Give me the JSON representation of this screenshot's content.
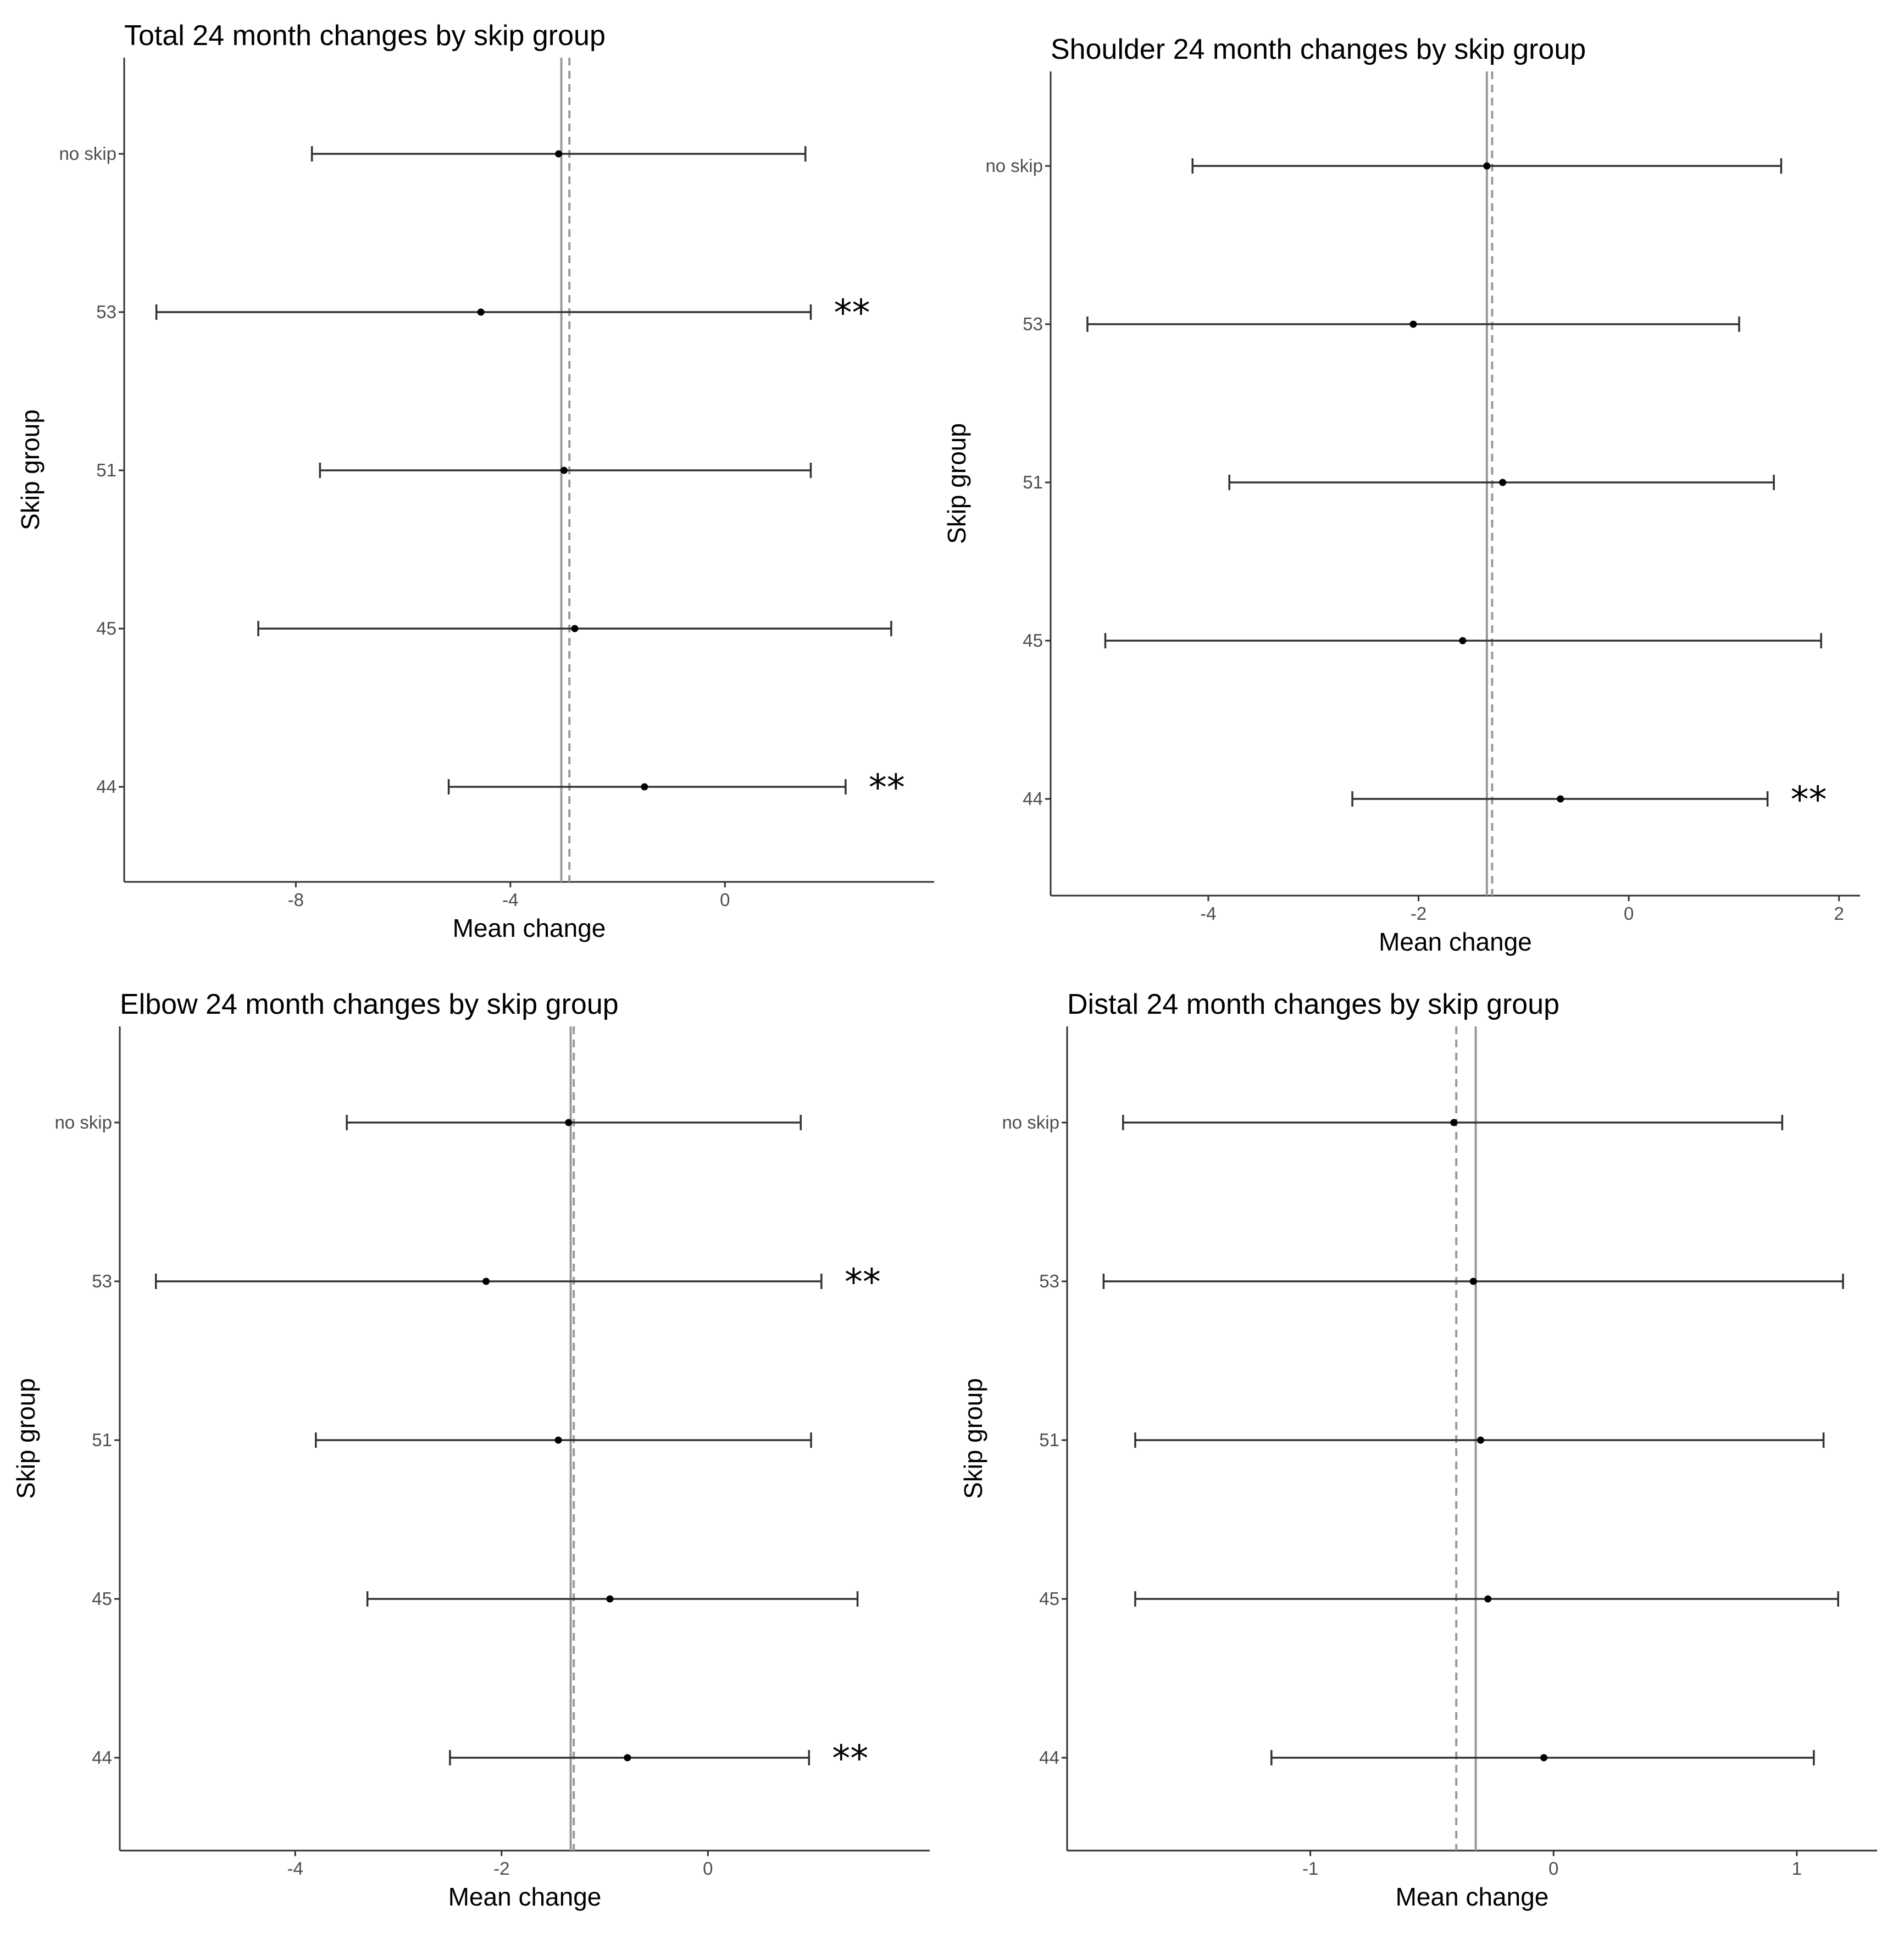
{
  "chart_data": [
    {
      "type": "errorbar",
      "title": "Total 24 month changes by skip group",
      "xlabel": "Mean change",
      "ylabel": "Skip group",
      "categories": [
        "no skip",
        "53",
        "51",
        "45",
        "44"
      ],
      "xticks": [
        -8,
        -4,
        0
      ],
      "xlim": [
        -11.2,
        3.9
      ],
      "points": [
        {
          "group": "no skip",
          "mean": -3.1,
          "lower": -7.7,
          "upper": 1.5,
          "significance": ""
        },
        {
          "group": "53",
          "mean": -4.55,
          "lower": -10.6,
          "upper": 1.6,
          "significance": "**"
        },
        {
          "group": "51",
          "mean": -3.0,
          "lower": -7.55,
          "upper": 1.6,
          "significance": ""
        },
        {
          "group": "45",
          "mean": -2.8,
          "lower": -8.7,
          "upper": 3.1,
          "significance": ""
        },
        {
          "group": "44",
          "mean": -1.5,
          "lower": -5.15,
          "upper": 2.25,
          "significance": "**"
        }
      ],
      "reference_lines": {
        "solid": -3.05,
        "dashed": -2.9
      },
      "grid": false
    },
    {
      "type": "errorbar",
      "title": "Shoulder 24 month changes by skip group",
      "xlabel": "Mean change",
      "ylabel": "Skip group",
      "categories": [
        "no skip",
        "53",
        "51",
        "45",
        "44"
      ],
      "xticks": [
        -4,
        -2,
        0,
        2
      ],
      "xlim": [
        -5.5,
        2.2
      ],
      "points": [
        {
          "group": "no skip",
          "mean": -1.35,
          "lower": -4.15,
          "upper": 1.45,
          "significance": ""
        },
        {
          "group": "53",
          "mean": -2.05,
          "lower": -5.15,
          "upper": 1.05,
          "significance": ""
        },
        {
          "group": "51",
          "mean": -1.2,
          "lower": -3.8,
          "upper": 1.38,
          "significance": ""
        },
        {
          "group": "45",
          "mean": -1.58,
          "lower": -4.98,
          "upper": 1.83,
          "significance": ""
        },
        {
          "group": "44",
          "mean": -0.65,
          "lower": -2.63,
          "upper": 1.32,
          "significance": "**"
        }
      ],
      "reference_lines": {
        "solid": -1.35,
        "dashed": -1.3
      },
      "grid": false
    },
    {
      "type": "errorbar",
      "title": "Elbow 24 month changes by skip group",
      "xlabel": "Mean change",
      "ylabel": "Skip group",
      "categories": [
        "no skip",
        "53",
        "51",
        "45",
        "44"
      ],
      "xticks": [
        -4,
        -2,
        0
      ],
      "xlim": [
        -5.7,
        2.15
      ],
      "points": [
        {
          "group": "no skip",
          "mean": -1.35,
          "lower": -3.5,
          "upper": 0.9,
          "significance": ""
        },
        {
          "group": "53",
          "mean": -2.15,
          "lower": -5.35,
          "upper": 1.1,
          "significance": "**"
        },
        {
          "group": "51",
          "mean": -1.45,
          "lower": -3.8,
          "upper": 1.0,
          "significance": ""
        },
        {
          "group": "45",
          "mean": -0.95,
          "lower": -3.3,
          "upper": 1.45,
          "significance": ""
        },
        {
          "group": "44",
          "mean": -0.78,
          "lower": -2.5,
          "upper": 0.98,
          "significance": "**"
        }
      ],
      "reference_lines": {
        "solid": -1.33,
        "dashed": -1.3
      },
      "grid": false
    },
    {
      "type": "errorbar",
      "title": "Distal 24 month changes by skip group",
      "xlabel": "Mean change",
      "ylabel": "Skip group",
      "categories": [
        "no skip",
        "53",
        "51",
        "45",
        "44"
      ],
      "xticks": [
        -1,
        0,
        1
      ],
      "xlim": [
        -2.0,
        1.33
      ],
      "points": [
        {
          "group": "no skip",
          "mean": -0.41,
          "lower": -1.77,
          "upper": 0.94,
          "significance": ""
        },
        {
          "group": "53",
          "mean": -0.33,
          "lower": -1.85,
          "upper": 1.19,
          "significance": ""
        },
        {
          "group": "51",
          "mean": -0.3,
          "lower": -1.72,
          "upper": 1.11,
          "significance": ""
        },
        {
          "group": "45",
          "mean": -0.27,
          "lower": -1.72,
          "upper": 1.17,
          "significance": ""
        },
        {
          "group": "44",
          "mean": -0.04,
          "lower": -1.16,
          "upper": 1.07,
          "significance": ""
        }
      ],
      "reference_lines": {
        "solid": -0.32,
        "dashed": -0.4
      },
      "grid": false
    }
  ]
}
